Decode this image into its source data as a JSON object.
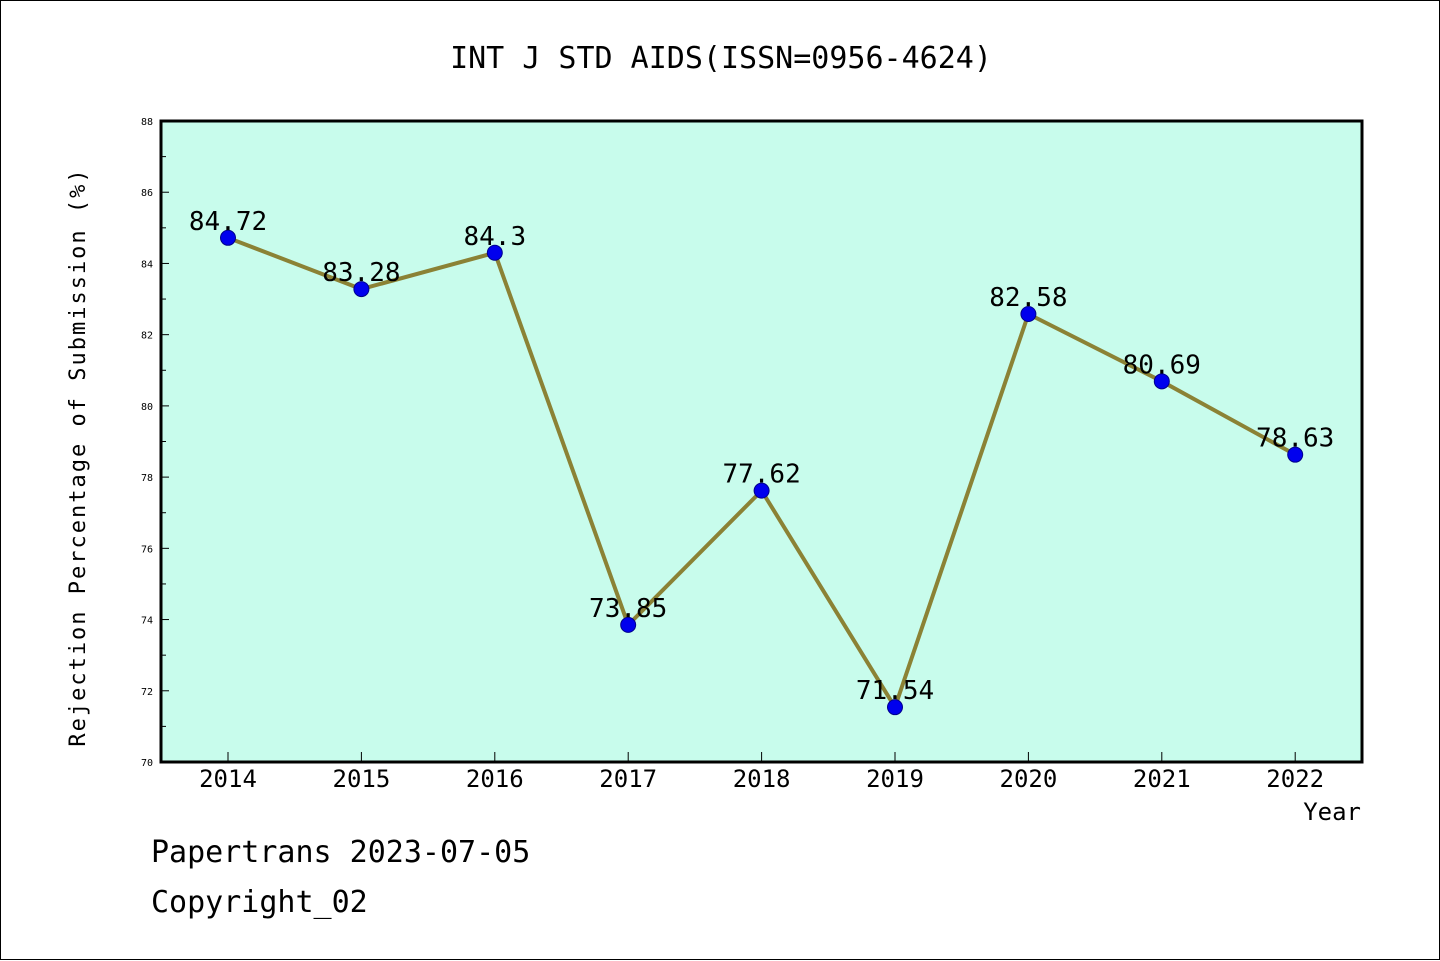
{
  "chart_data": {
    "type": "line",
    "title": "INT J STD AIDS(ISSN=0956-4624)",
    "xlabel": "Year",
    "ylabel": "Rejection Percentage of Submission (%)",
    "categories": [
      "2014",
      "2015",
      "2016",
      "2017",
      "2018",
      "2019",
      "2020",
      "2021",
      "2022"
    ],
    "values": [
      84.72,
      83.28,
      84.3,
      73.85,
      77.62,
      71.54,
      82.58,
      80.69,
      78.63
    ],
    "data_labels": [
      "84.72",
      "83.28",
      "84.3",
      "73.85",
      "77.62",
      "71.54",
      "82.58",
      "80.69",
      "78.63"
    ],
    "y_ticks": [
      "70",
      "72",
      "74",
      "76",
      "78",
      "80",
      "82",
      "84",
      "86",
      "88"
    ],
    "ylim": [
      70,
      88
    ],
    "grid": false,
    "legend": "none",
    "colors": {
      "plot_background": "#c8fcec",
      "line": "#8b8235",
      "marker": "#0000ee",
      "marker_edge": "#00008b"
    }
  },
  "footer": {
    "line1": "Papertrans 2023-07-05",
    "line2": "Copyright_02"
  }
}
